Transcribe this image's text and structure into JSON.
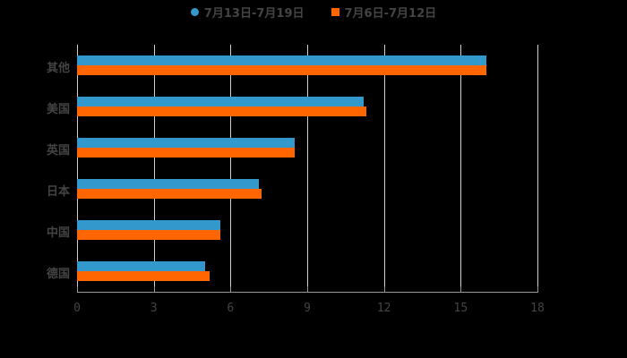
{
  "chart_data": {
    "type": "bar",
    "orientation": "horizontal",
    "title": "",
    "xlabel": "",
    "ylabel": "",
    "categories": [
      "其他",
      "美国",
      "英国",
      "日本",
      "中国",
      "德国"
    ],
    "series": [
      {
        "name": "7月13日-7月19日",
        "color": "#3399cc",
        "values": [
          16.0,
          11.2,
          8.5,
          7.1,
          5.6,
          5.0
        ]
      },
      {
        "name": "7月6日-7月12日",
        "color": "#ff6600",
        "values": [
          16.0,
          11.3,
          8.5,
          7.2,
          5.6,
          5.2
        ]
      }
    ],
    "xlim": [
      0,
      18
    ],
    "xticks": [
      0,
      3,
      6,
      9,
      12,
      15,
      18
    ],
    "grid": true,
    "legend_position": "top"
  },
  "legend": {
    "items": [
      {
        "label": "7月13日-7月19日",
        "color": "#3399cc",
        "marker": "circle"
      },
      {
        "label": "7月6日-7月12日",
        "color": "#ff6600",
        "marker": "square"
      }
    ]
  },
  "colors": {
    "background": "#000000",
    "grid": "#d0d0d0",
    "text": "#444444"
  }
}
